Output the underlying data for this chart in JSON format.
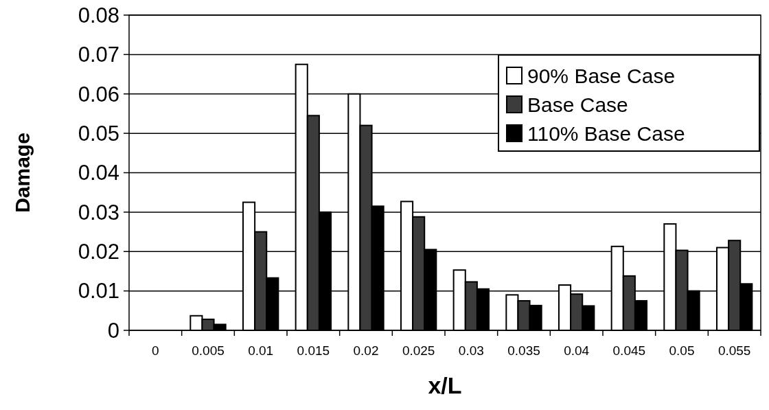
{
  "chart_data": {
    "type": "bar",
    "xlabel": "x/L",
    "ylabel": "Damage",
    "categories": [
      "0",
      "0.005",
      "0.01",
      "0.015",
      "0.02",
      "0.025",
      "0.03",
      "0.035",
      "0.04",
      "0.045",
      "0.05",
      "0.055"
    ],
    "series": [
      {
        "name": "90% Base Case",
        "color": "#ffffff",
        "values": [
          0,
          0.0037,
          0.0325,
          0.0675,
          0.06,
          0.0327,
          0.0153,
          0.009,
          0.0115,
          0.0213,
          0.027,
          0.021
        ]
      },
      {
        "name": "Base Case",
        "color": "#3c3c3c",
        "values": [
          0,
          0.0028,
          0.025,
          0.0545,
          0.052,
          0.0288,
          0.0123,
          0.0075,
          0.0092,
          0.0138,
          0.0203,
          0.0228
        ]
      },
      {
        "name": "110% Base Case",
        "color": "#000000",
        "values": [
          0,
          0.0015,
          0.0133,
          0.03,
          0.0315,
          0.0205,
          0.0105,
          0.0063,
          0.0062,
          0.0075,
          0.01,
          0.0118
        ]
      }
    ],
    "ylim": [
      0,
      0.08
    ],
    "yticks": [
      0,
      0.01,
      0.02,
      0.03,
      0.04,
      0.05,
      0.06,
      0.07,
      0.08
    ],
    "grid": "y",
    "legend": "top right"
  }
}
